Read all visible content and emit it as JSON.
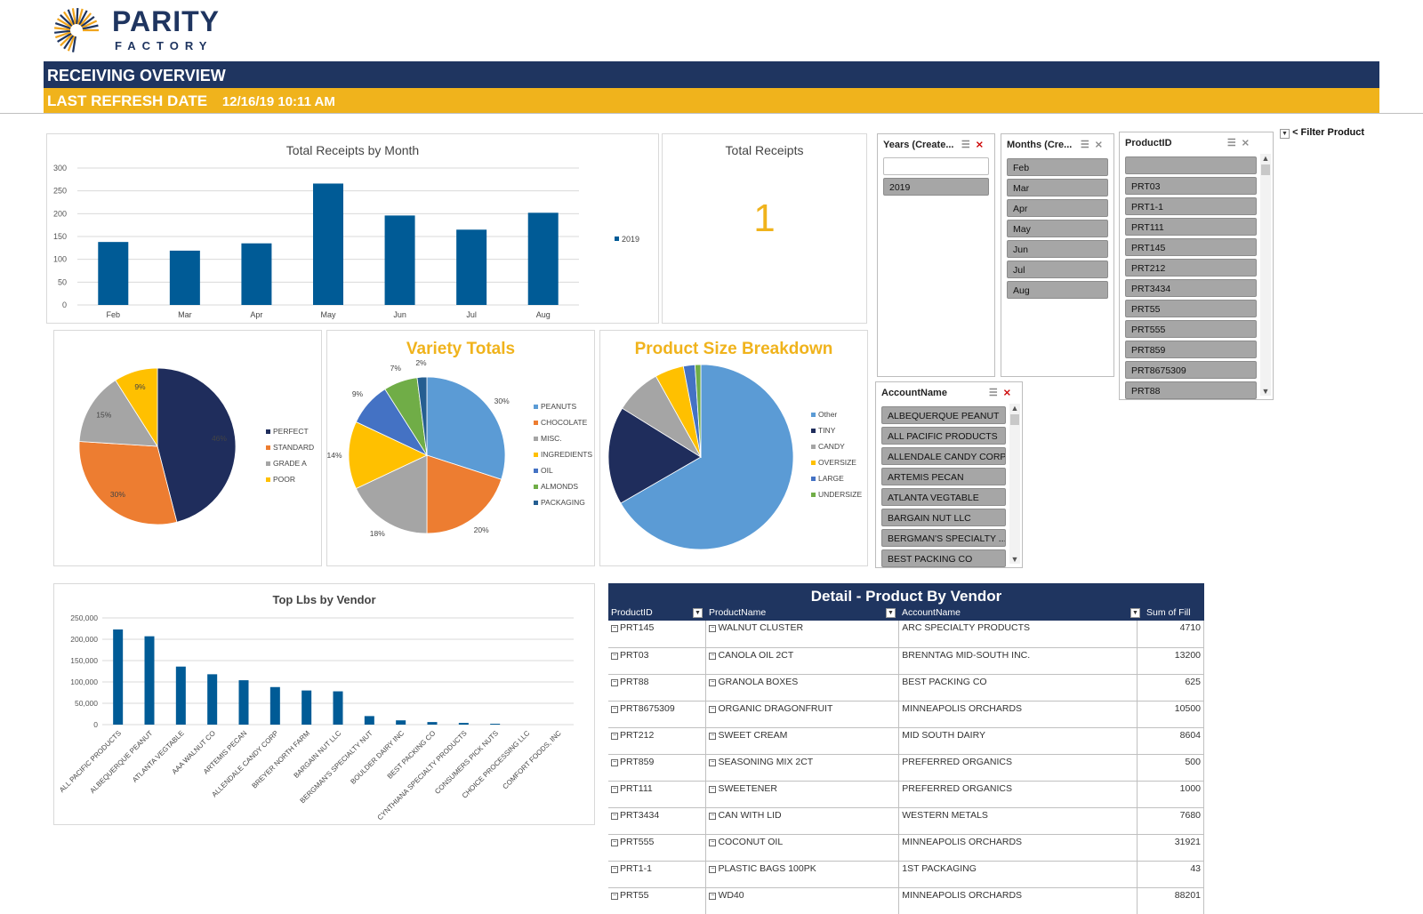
{
  "brand": {
    "name": "PARITY",
    "sub": "FACTORY"
  },
  "header": {
    "title": "RECEIVING OVERVIEW",
    "refresh_label": "LAST REFRESH DATE",
    "refresh_value": "12/16/19 10:11 AM"
  },
  "receipts_by_month": {
    "title": "Total Receipts by Month",
    "legend": "2019",
    "y_ticks": [
      "300",
      "250",
      "200",
      "150",
      "100",
      "50",
      "0"
    ]
  },
  "total_receipts": {
    "title": "Total Receipts",
    "value": "1"
  },
  "quality_pie": {
    "legend": [
      "PERFECT",
      "STANDARD",
      "GRADE A",
      "POOR"
    ],
    "labels": [
      "46%",
      "30%",
      "15%",
      "9%"
    ]
  },
  "variety": {
    "title": "Variety Totals",
    "legend": [
      "PEANUTS",
      "CHOCOLATE",
      "MISC.",
      "INGREDIENTS",
      "OIL",
      "ALMONDS",
      "PACKAGING"
    ],
    "labels": [
      "30%",
      "20%",
      "18%",
      "14%",
      "9%",
      "7%",
      "2%"
    ]
  },
  "size": {
    "title": "Product Size Breakdown",
    "legend": [
      "Other",
      "TINY",
      "CANDY",
      "OVERSIZE",
      "LARGE",
      "UNDERSIZE"
    ]
  },
  "vendor_chart": {
    "title": "Top Lbs by Vendor",
    "y_ticks": [
      "250,000",
      "200,000",
      "150,000",
      "100,000",
      "50,000",
      "0"
    ]
  },
  "chart_data": [
    {
      "type": "bar",
      "title": "Total Receipts by Month",
      "categories": [
        "Feb",
        "Mar",
        "Apr",
        "May",
        "Jun",
        "Jul",
        "Aug"
      ],
      "series": [
        {
          "name": "2019",
          "values": [
            138,
            119,
            135,
            266,
            196,
            165,
            202
          ]
        }
      ],
      "ylim": [
        0,
        300
      ],
      "grid": true,
      "legend": "right",
      "colors": [
        "#005b96"
      ]
    },
    {
      "type": "pie",
      "categories": [
        "PERFECT",
        "STANDARD",
        "GRADE A",
        "POOR"
      ],
      "values": [
        46,
        30,
        15,
        9
      ],
      "colors": [
        "#1f2d5c",
        "#ed7d31",
        "#a5a5a5",
        "#ffc000"
      ],
      "legend": "right"
    },
    {
      "type": "pie",
      "title": "Variety Totals",
      "categories": [
        "PEANUTS",
        "CHOCOLATE",
        "MISC.",
        "INGREDIENTS",
        "OIL",
        "ALMONDS",
        "PACKAGING"
      ],
      "values": [
        30,
        20,
        18,
        14,
        9,
        7,
        2
      ],
      "colors": [
        "#5b9bd5",
        "#ed7d31",
        "#a5a5a5",
        "#ffc000",
        "#4472c4",
        "#70ad47",
        "#255e91"
      ],
      "legend": "right"
    },
    {
      "type": "pie",
      "title": "Product Size Breakdown",
      "categories": [
        "Other",
        "TINY",
        "CANDY",
        "OVERSIZE",
        "LARGE",
        "UNDERSIZE"
      ],
      "values": [
        66,
        17,
        8,
        5,
        2,
        1
      ],
      "colors": [
        "#5b9bd5",
        "#1f2d5c",
        "#a5a5a5",
        "#ffc000",
        "#4472c4",
        "#70ad47"
      ],
      "legend": "right"
    },
    {
      "type": "bar",
      "title": "Top Lbs by Vendor",
      "categories": [
        "ALL PACIFIC PRODUCTS",
        "ALBEQUERQUE PEANUT",
        "ATLANTA VEGTABLE",
        "AAA WALNUT CO",
        "ARTEMIS PECAN",
        "ALLENDALE CANDY CORP",
        "BREYER NORTH FARM",
        "BARGAIN NUT LLC",
        "BERGMAN'S SPECIALTY NUT",
        "BOULDER DAIRY INC",
        "BEST PACKING CO",
        "CYNTHIANA SPECIALTY PRODUCTS",
        "CONSUMERS PICK NUTS",
        "CHOICE PROCESSING LLC",
        "COMFORT FOODS, INC"
      ],
      "values": [
        223000,
        207000,
        136000,
        118000,
        104000,
        88000,
        80000,
        78000,
        20000,
        10000,
        6000,
        4000,
        2000,
        0,
        0
      ],
      "ylim": [
        0,
        250000
      ],
      "grid": true,
      "colors": [
        "#005b96"
      ]
    }
  ],
  "slicers": {
    "years": {
      "title": "Years (Create...",
      "items": [
        "2019"
      ]
    },
    "months": {
      "title": "Months (Cre...",
      "items": [
        "Feb",
        "Mar",
        "Apr",
        "May",
        "Jun",
        "Jul",
        "Aug"
      ]
    },
    "product": {
      "title": "ProductID",
      "items": [
        "PRT03",
        "PRT1-1",
        "PRT111",
        "PRT145",
        "PRT212",
        "PRT3434",
        "PRT55",
        "PRT555",
        "PRT859",
        "PRT8675309",
        "PRT88"
      ]
    },
    "account": {
      "title": "AccountName",
      "items": [
        "ALBEQUERQUE PEANUT",
        "ALL PACIFIC PRODUCTS",
        "ALLENDALE CANDY CORP",
        "ARTEMIS PECAN",
        "ATLANTA VEGTABLE",
        "BARGAIN NUT LLC",
        "BERGMAN'S SPECIALTY ...",
        "BEST PACKING CO"
      ]
    },
    "filter_label": "< Filter Product"
  },
  "detail": {
    "title": "Detail - Product By Vendor",
    "columns": [
      "ProductID",
      "ProductName",
      "AccountName",
      "Sum of Fill"
    ],
    "rows": [
      {
        "id": "PRT145",
        "name": "WALNUT CLUSTER",
        "account": "ARC SPECIALTY PRODUCTS",
        "fill": "4710"
      },
      {
        "id": "PRT03",
        "name": "CANOLA OIL 2CT",
        "account": "BRENNTAG MID-SOUTH INC.",
        "fill": "13200"
      },
      {
        "id": "PRT88",
        "name": "GRANOLA BOXES",
        "account": "BEST PACKING CO",
        "fill": "625"
      },
      {
        "id": "PRT8675309",
        "name": "ORGANIC DRAGONFRUIT",
        "account": "MINNEAPOLIS ORCHARDS",
        "fill": "10500"
      },
      {
        "id": "PRT212",
        "name": "SWEET CREAM",
        "account": "MID SOUTH DAIRY",
        "fill": "8604"
      },
      {
        "id": "PRT859",
        "name": "SEASONING MIX 2CT",
        "account": "PREFERRED ORGANICS",
        "fill": "500"
      },
      {
        "id": "PRT111",
        "name": "SWEETENER",
        "account": "PREFERRED ORGANICS",
        "fill": "1000"
      },
      {
        "id": "PRT3434",
        "name": "CAN WITH LID",
        "account": "WESTERN METALS",
        "fill": "7680"
      },
      {
        "id": "PRT555",
        "name": "COCONUT OIL",
        "account": "MINNEAPOLIS ORCHARDS",
        "fill": "31921"
      },
      {
        "id": "PRT1-1",
        "name": "PLASTIC BAGS 100PK",
        "account": "1ST PACKAGING",
        "fill": "43"
      },
      {
        "id": "PRT55",
        "name": "WD40",
        "account": "MINNEAPOLIS ORCHARDS",
        "fill": "88201"
      }
    ]
  }
}
